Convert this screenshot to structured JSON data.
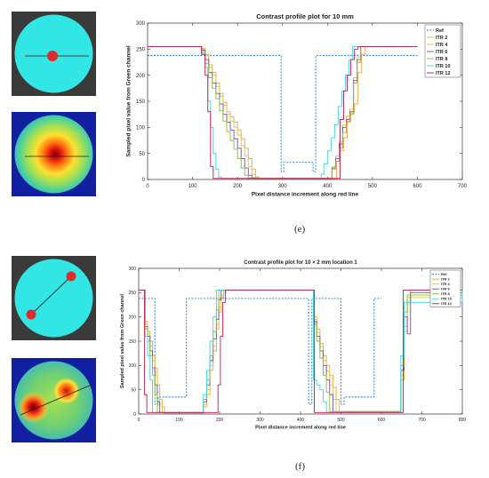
{
  "panels": {
    "e": {
      "label": "(e)"
    },
    "f": {
      "label": "(f)"
    }
  },
  "colors": {
    "ref": "#1f77d0",
    "itr2": "#f2a33a",
    "itr4": "#e0c23a",
    "itr6": "#7a4aa8",
    "itr8": "#7fbf3a",
    "itr10": "#3fd0e8",
    "itr12": "#c0174a",
    "phantom_bg": "#3a3a3a",
    "phantom_disc": "#33e6e6",
    "lesion": "#e02b2b"
  },
  "chart_data": [
    {
      "type": "line",
      "title": "Contrast profile plot for 10 mm",
      "xlabel": "Pixel distance increment along red line",
      "ylabel": "Sampled pixel value from Green channel",
      "xlim": [
        0,
        700
      ],
      "ylim": [
        0,
        300
      ],
      "xticks": [
        0,
        100,
        200,
        300,
        400,
        500,
        600,
        700
      ],
      "yticks": [
        0,
        50,
        100,
        150,
        200,
        250,
        300
      ],
      "legend_position": "top-right",
      "grid": false,
      "series": [
        {
          "name": "Ref",
          "style": "dotted",
          "colorKey": "ref",
          "x": [
            0,
            297,
            297,
            303,
            303,
            368,
            368,
            374,
            374,
            600
          ],
          "y": [
            238,
            238,
            15,
            15,
            33,
            33,
            15,
            15,
            238,
            238
          ]
        },
        {
          "name": "ITR 2",
          "style": "step",
          "colorKey": "itr2",
          "x": [
            0,
            112,
            120,
            128,
            136,
            144,
            152,
            160,
            168,
            176,
            184,
            192,
            200,
            208,
            216,
            224,
            232,
            240,
            248,
            256,
            264,
            272,
            420,
            428,
            436,
            444,
            452,
            460,
            468,
            476,
            484,
            600
          ],
          "y": [
            255,
            255,
            252,
            240,
            220,
            205,
            185,
            165,
            148,
            130,
            120,
            110,
            95,
            78,
            60,
            40,
            20,
            5,
            2,
            2,
            2,
            2,
            35,
            55,
            80,
            112,
            128,
            145,
            205,
            240,
            255,
            255
          ]
        },
        {
          "name": "ITR 4",
          "style": "step",
          "colorKey": "itr4",
          "x": [
            0,
            112,
            120,
            128,
            136,
            144,
            152,
            160,
            168,
            176,
            184,
            192,
            200,
            208,
            216,
            224,
            232,
            240,
            248,
            256,
            264,
            410,
            418,
            426,
            434,
            442,
            450,
            458,
            466,
            474,
            600
          ],
          "y": [
            255,
            255,
            250,
            238,
            215,
            200,
            178,
            160,
            142,
            125,
            112,
            100,
            85,
            65,
            45,
            25,
            10,
            3,
            2,
            2,
            2,
            25,
            45,
            72,
            105,
            122,
            135,
            195,
            235,
            255,
            255
          ]
        },
        {
          "name": "ITR 6",
          "style": "step",
          "colorKey": "itr6",
          "x": [
            0,
            112,
            120,
            128,
            136,
            144,
            152,
            160,
            168,
            176,
            184,
            192,
            200,
            208,
            216,
            224,
            232,
            240,
            248,
            410,
            418,
            426,
            434,
            442,
            450,
            458,
            466,
            474,
            600
          ],
          "y": [
            255,
            255,
            248,
            230,
            205,
            185,
            165,
            145,
            125,
            110,
            95,
            78,
            60,
            40,
            22,
            8,
            3,
            2,
            2,
            22,
            40,
            68,
            100,
            115,
            130,
            190,
            230,
            255,
            255
          ]
        },
        {
          "name": "ITR 8",
          "style": "step",
          "colorKey": "itr8",
          "x": [
            0,
            112,
            120,
            128,
            136,
            144,
            152,
            160,
            168,
            176,
            184,
            192,
            200,
            208,
            216,
            224,
            232,
            240,
            410,
            418,
            426,
            434,
            442,
            450,
            458,
            466,
            474,
            600
          ],
          "y": [
            255,
            255,
            245,
            222,
            195,
            175,
            155,
            132,
            112,
            92,
            75,
            58,
            40,
            22,
            8,
            3,
            2,
            2,
            20,
            35,
            60,
            90,
            110,
            125,
            185,
            225,
            255,
            255
          ]
        },
        {
          "name": "ITR 10",
          "style": "step",
          "colorKey": "itr10",
          "x": [
            0,
            112,
            120,
            128,
            134,
            140,
            146,
            152,
            158,
            164,
            380,
            386,
            392,
            400,
            408,
            416,
            424,
            432,
            440,
            448,
            456,
            600
          ],
          "y": [
            255,
            255,
            242,
            215,
            150,
            100,
            50,
            20,
            5,
            2,
            2,
            10,
            30,
            55,
            80,
            105,
            140,
            170,
            200,
            230,
            255,
            255
          ]
        },
        {
          "name": "ITR 12",
          "style": "step",
          "colorKey": "itr12",
          "x": [
            0,
            112,
            120,
            128,
            134,
            140,
            146,
            152,
            420,
            428,
            436,
            444,
            452,
            460,
            468,
            600
          ],
          "y": [
            255,
            255,
            240,
            200,
            130,
            25,
            2,
            2,
            2,
            115,
            170,
            200,
            230,
            250,
            255,
            255
          ]
        }
      ]
    },
    {
      "type": "line",
      "title": "Contrast profile plot for 10 × 2 mm location 1",
      "xlabel": "Pixel distance increment along red line",
      "ylabel": "Sampled pixel value from Green channel",
      "xlim": [
        0,
        800
      ],
      "ylim": [
        0,
        300
      ],
      "xticks": [
        0,
        100,
        200,
        300,
        400,
        500,
        600,
        700,
        800
      ],
      "yticks": [
        0,
        50,
        100,
        150,
        200,
        250,
        300
      ],
      "legend_position": "top-right",
      "grid": false,
      "series": [
        {
          "name": "Ref",
          "style": "dotted",
          "colorKey": "ref",
          "x": [
            0,
            40,
            40,
            48,
            48,
            118,
            118,
            420,
            420,
            428,
            428,
            500,
            500,
            508,
            508,
            582,
            582,
            600
          ],
          "y": [
            238,
            238,
            20,
            20,
            35,
            35,
            238,
            238,
            20,
            20,
            238,
            238,
            20,
            20,
            35,
            35,
            238,
            238
          ]
        },
        {
          "name": "ITR 2",
          "style": "step",
          "colorKey": "itr2",
          "x": [
            0,
            10,
            16,
            22,
            28,
            34,
            40,
            46,
            52,
            58,
            64,
            150,
            160,
            168,
            176,
            184,
            192,
            198,
            204,
            210,
            216,
            425,
            432,
            440,
            448,
            456,
            464,
            472,
            480,
            488,
            496,
            640,
            648,
            656,
            664,
            672,
            800
          ],
          "y": [
            255,
            255,
            190,
            170,
            150,
            120,
            95,
            60,
            30,
            15,
            2,
            2,
            15,
            40,
            90,
            130,
            175,
            210,
            240,
            250,
            255,
            255,
            200,
            175,
            145,
            120,
            100,
            80,
            55,
            30,
            5,
            5,
            70,
            170,
            230,
            255,
            255
          ]
        },
        {
          "name": "ITR 4",
          "style": "step",
          "colorKey": "itr4",
          "x": [
            0,
            10,
            16,
            22,
            28,
            34,
            40,
            46,
            52,
            58,
            150,
            160,
            168,
            176,
            184,
            192,
            198,
            204,
            210,
            425,
            432,
            440,
            448,
            456,
            464,
            472,
            480,
            488,
            640,
            648,
            656,
            664,
            800
          ],
          "y": [
            255,
            255,
            185,
            165,
            140,
            110,
            80,
            45,
            20,
            3,
            3,
            20,
            50,
            100,
            140,
            185,
            220,
            245,
            255,
            255,
            195,
            168,
            138,
            110,
            88,
            60,
            30,
            5,
            5,
            80,
            180,
            240,
            255
          ]
        },
        {
          "name": "ITR 6",
          "style": "step",
          "colorKey": "itr6",
          "x": [
            0,
            10,
            16,
            22,
            28,
            34,
            40,
            46,
            52,
            150,
            160,
            168,
            176,
            184,
            192,
            198,
            204,
            425,
            432,
            440,
            448,
            456,
            464,
            472,
            480,
            640,
            648,
            656,
            664,
            672,
            800
          ],
          "y": [
            255,
            255,
            180,
            160,
            130,
            95,
            60,
            25,
            3,
            3,
            25,
            60,
            110,
            155,
            195,
            235,
            255,
            255,
            190,
            160,
            130,
            100,
            70,
            40,
            5,
            5,
            90,
            200,
            165,
            250,
            255
          ]
        },
        {
          "name": "ITR 8",
          "style": "step",
          "colorKey": "itr8",
          "x": [
            0,
            10,
            16,
            22,
            28,
            34,
            40,
            46,
            150,
            160,
            168,
            176,
            184,
            192,
            198,
            425,
            432,
            440,
            448,
            456,
            464,
            472,
            640,
            648,
            656,
            664,
            800
          ],
          "y": [
            255,
            255,
            175,
            150,
            120,
            80,
            40,
            3,
            3,
            30,
            70,
            120,
            170,
            215,
            255,
            255,
            185,
            150,
            115,
            80,
            45,
            5,
            5,
            100,
            210,
            245,
            255
          ]
        },
        {
          "name": "ITR 10",
          "style": "step",
          "colorKey": "itr10",
          "x": [
            0,
            10,
            16,
            22,
            28,
            34,
            150,
            160,
            168,
            176,
            184,
            192,
            425,
            432,
            440,
            448,
            456,
            464,
            640,
            648,
            656,
            800
          ],
          "y": [
            255,
            255,
            160,
            120,
            70,
            3,
            3,
            40,
            90,
            150,
            200,
            255,
            255,
            70,
            60,
            50,
            25,
            3,
            3,
            120,
            230,
            255
          ]
        },
        {
          "name": "ITR 12",
          "style": "step",
          "colorKey": "itr12",
          "x": [
            0,
            10,
            14,
            20,
            26,
            32,
            190,
            196,
            202,
            208,
            214,
            430,
            434,
            650,
            654,
            800
          ],
          "y": [
            255,
            255,
            40,
            3,
            3,
            3,
            3,
            60,
            160,
            230,
            255,
            255,
            3,
            3,
            255,
            255
          ]
        }
      ]
    }
  ]
}
